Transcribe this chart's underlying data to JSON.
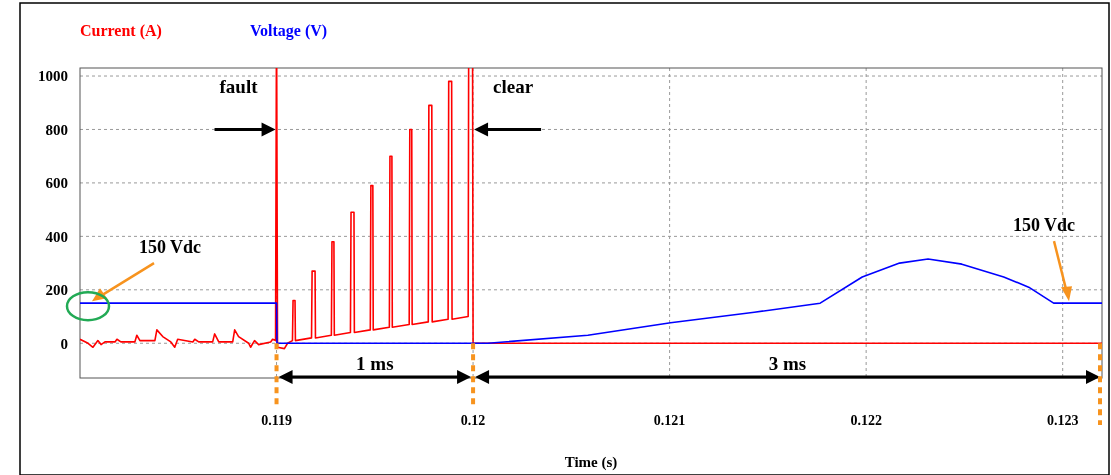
{
  "chart_data": {
    "type": "line",
    "xlabel": "Time (s)",
    "xlim": [
      0.118,
      0.1232
    ],
    "ylim": [
      -130,
      1030
    ],
    "xticks": [
      0.119,
      0.12,
      0.121,
      0.122,
      0.123
    ],
    "yticks": [
      0,
      200,
      400,
      600,
      800,
      1000
    ],
    "grid": true,
    "legend": "top left",
    "line_style": "solid",
    "marker": "none",
    "series": [
      {
        "name": "Current (A)",
        "color": "#ff0000",
        "x": [
          0.118,
          0.118041,
          0.118066,
          0.118091,
          0.118107,
          0.118127,
          0.118178,
          0.118188,
          0.118208,
          0.118279,
          0.118289,
          0.118305,
          0.118381,
          0.118391,
          0.118421,
          0.118462,
          0.118482,
          0.118497,
          0.118574,
          0.118584,
          0.118604,
          0.118675,
          0.118685,
          0.118706,
          0.118777,
          0.118787,
          0.118807,
          0.118858,
          0.118868,
          0.118888,
          0.118909,
          0.11897,
          0.11898,
          0.118995,
          0.119,
          0.119005,
          0.11904,
          0.119056,
          0.119081,
          0.119084,
          0.119094,
          0.119096,
          0.119178,
          0.119181,
          0.119196,
          0.119198,
          0.119279,
          0.119282,
          0.119292,
          0.119294,
          0.119376,
          0.119379,
          0.119394,
          0.119396,
          0.119477,
          0.11948,
          0.11949,
          0.119492,
          0.119574,
          0.119577,
          0.119587,
          0.119589,
          0.119675,
          0.119678,
          0.119688,
          0.11969,
          0.119772,
          0.119775,
          0.11979,
          0.119792,
          0.119873,
          0.119876,
          0.119891,
          0.119893,
          0.119975,
          0.119978,
          0.119997,
          0.12,
          0.1232
        ],
        "values": [
          15,
          0,
          -15,
          10,
          -5,
          5,
          5,
          15,
          5,
          5,
          30,
          10,
          10,
          50,
          25,
          5,
          -15,
          15,
          5,
          15,
          5,
          5,
          35,
          5,
          5,
          50,
          25,
          0,
          -15,
          10,
          -5,
          5,
          15,
          10,
          null,
          -15,
          -20,
          0,
          10,
          160,
          160,
          10,
          20,
          270,
          270,
          20,
          30,
          380,
          380,
          30,
          40,
          490,
          490,
          40,
          50,
          590,
          590,
          50,
          60,
          700,
          700,
          60,
          70,
          800,
          800,
          70,
          80,
          890,
          890,
          80,
          90,
          980,
          980,
          90,
          100,
          null,
          null,
          0,
          0
        ]
      },
      {
        "name": "Voltage (V)",
        "color": "#0000ff",
        "x": [
          0.118,
          0.119,
          0.119002,
          0.120076,
          0.120584,
          0.121005,
          0.121431,
          0.121766,
          0.12198,
          0.12217,
          0.122315,
          0.122487,
          0.1227,
          0.122827,
          0.122954,
          0.1232
        ],
        "values": [
          150,
          150,
          0,
          0,
          30,
          77,
          116,
          150,
          248,
          300,
          315,
          296,
          248,
          210,
          150,
          150
        ]
      }
    ],
    "annotations": [
      {
        "text": "fault",
        "x": 0.119,
        "y": 800
      },
      {
        "text": "clear",
        "x": 0.12,
        "y": 800
      },
      "150 Vdc",
      "150 Vdc",
      "1 ms",
      "3 ms"
    ],
    "ref_lines": [
      {
        "axis": "x",
        "value": 0.119,
        "color": "#f7931e",
        "line_style": "dotted"
      },
      {
        "axis": "x",
        "value": 0.12,
        "color": "#f7931e",
        "line_style": "dotted"
      },
      {
        "axis": "x",
        "value": 0.1232,
        "color": "#f7931e",
        "line_style": "dotted"
      }
    ]
  }
}
